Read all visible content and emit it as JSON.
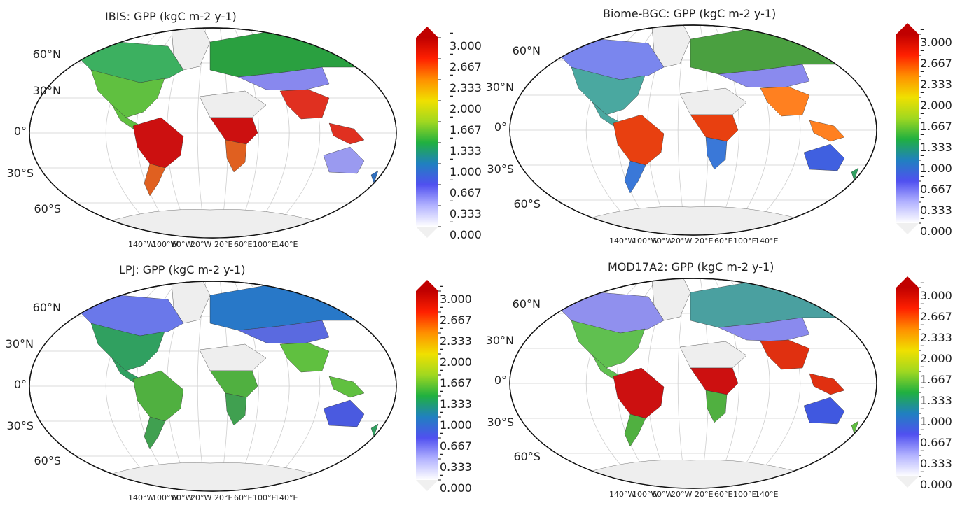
{
  "panels": [
    {
      "id": "ibis",
      "title": "IBIS: GPP (kgC m-2 y-1)"
    },
    {
      "id": "biome-bgc",
      "title": "Biome-BGC: GPP (kgC m-2 y-1)"
    },
    {
      "id": "lpj",
      "title": "LPJ: GPP (kgC m-2 y-1)"
    },
    {
      "id": "mod17a2",
      "title": "MOD17A2: GPP (kgC m-2 y-1)"
    }
  ],
  "lat_labels": [
    "60°N",
    "30°N",
    "0°",
    "30°S",
    "60°S"
  ],
  "lon_labels": [
    "140°W",
    "100°W",
    "60°W",
    "20°W",
    "20°E",
    "60°E",
    "100°E",
    "140°E"
  ],
  "colorbar": {
    "ticks": [
      "3.000",
      "2.667",
      "2.333",
      "2.000",
      "1.667",
      "1.333",
      "1.000",
      "0.667",
      "0.333",
      "0.000"
    ],
    "colors": [
      "#ffffff",
      "#b3b3ff",
      "#5050f0",
      "#2080c0",
      "#20b040",
      "#a0d820",
      "#f0e000",
      "#ff9000",
      "#ff2000",
      "#c00000"
    ]
  }
}
